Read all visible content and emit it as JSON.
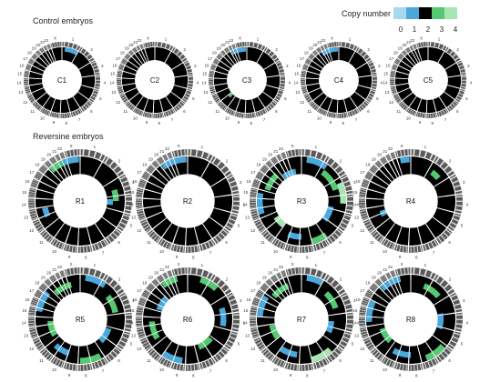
{
  "sections": [
    {
      "title": "Control embryos"
    },
    {
      "title": "Reversine embryos"
    }
  ],
  "legend": {
    "title": "Copy number",
    "entries": [
      {
        "label": "0",
        "color": "#a8d8f0"
      },
      {
        "label": "1",
        "color": "#4aa8dc"
      },
      {
        "label": "2",
        "color": "#000000"
      },
      {
        "label": "3",
        "color": "#55c873"
      },
      {
        "label": "4",
        "color": "#a6e6b2"
      }
    ]
  },
  "chromosome_labels": [
    "1",
    "2",
    "3",
    "4",
    "5",
    "6",
    "7",
    "8",
    "9",
    "10",
    "11",
    "12",
    "13",
    "14",
    "15",
    "16",
    "17",
    "18",
    "19",
    "20",
    "21",
    "22",
    "X"
  ],
  "embryos": [
    {
      "label": "C1",
      "group": "control",
      "events": [
        {
          "track": 0,
          "start": 0.015,
          "end": 0.085,
          "cn": 1
        }
      ]
    },
    {
      "label": "C2",
      "group": "control",
      "events": []
    },
    {
      "label": "C3",
      "group": "control",
      "events": [
        {
          "track": 0,
          "start": 0.92,
          "end": 0.995,
          "cn": 1
        },
        {
          "track": 2,
          "start": 0.62,
          "end": 0.64,
          "cn": 3
        }
      ]
    },
    {
      "label": "C4",
      "group": "control",
      "events": [
        {
          "track": 0,
          "start": 0.91,
          "end": 0.995,
          "cn": 1
        }
      ]
    },
    {
      "label": "C5",
      "group": "control",
      "events": []
    },
    {
      "label": "R1",
      "group": "reversine",
      "events": [
        {
          "track": 0,
          "start": 0.88,
          "end": 0.93,
          "cn": 3
        },
        {
          "track": 0,
          "start": 0.93,
          "end": 0.995,
          "cn": 1
        },
        {
          "track": 1,
          "start": 0.2,
          "end": 0.25,
          "cn": 3
        },
        {
          "track": 2,
          "start": 0.24,
          "end": 0.27,
          "cn": 1
        },
        {
          "track": 1,
          "start": 0.68,
          "end": 0.72,
          "cn": 1
        }
      ]
    },
    {
      "label": "R2",
      "group": "reversine",
      "events": [
        {
          "track": 0,
          "start": 0.9,
          "end": 0.995,
          "cn": 1
        }
      ]
    },
    {
      "label": "R3",
      "group": "reversine",
      "events": [
        {
          "track": 0,
          "start": 0.02,
          "end": 0.1,
          "cn": 1
        },
        {
          "track": 1,
          "start": 0.1,
          "end": 0.2,
          "cn": 3
        },
        {
          "track": 0,
          "start": 0.18,
          "end": 0.26,
          "cn": 4
        },
        {
          "track": 2,
          "start": 0.28,
          "end": 0.36,
          "cn": 1
        },
        {
          "track": 0,
          "start": 0.4,
          "end": 0.46,
          "cn": 3
        },
        {
          "track": 1,
          "start": 0.5,
          "end": 0.56,
          "cn": 1
        },
        {
          "track": 2,
          "start": 0.6,
          "end": 0.66,
          "cn": 4
        },
        {
          "track": 0,
          "start": 0.7,
          "end": 0.78,
          "cn": 1
        },
        {
          "track": 1,
          "start": 0.8,
          "end": 0.88,
          "cn": 3
        },
        {
          "track": 2,
          "start": 0.9,
          "end": 0.97,
          "cn": 1
        }
      ]
    },
    {
      "label": "R4",
      "group": "reversine",
      "events": [
        {
          "track": 0,
          "start": 0.96,
          "end": 0.995,
          "cn": 1
        },
        {
          "track": 1,
          "start": 0.1,
          "end": 0.14,
          "cn": 3
        },
        {
          "track": 2,
          "start": 0.67,
          "end": 0.7,
          "cn": 1
        }
      ]
    },
    {
      "label": "R5",
      "group": "reversine",
      "events": [
        {
          "track": 0,
          "start": 0.02,
          "end": 0.1,
          "cn": 1
        },
        {
          "track": 1,
          "start": 0.14,
          "end": 0.22,
          "cn": 3
        },
        {
          "track": 2,
          "start": 0.3,
          "end": 0.38,
          "cn": 1
        },
        {
          "track": 0,
          "start": 0.42,
          "end": 0.5,
          "cn": 3
        },
        {
          "track": 1,
          "start": 0.55,
          "end": 0.62,
          "cn": 1
        },
        {
          "track": 2,
          "start": 0.66,
          "end": 0.74,
          "cn": 3
        },
        {
          "track": 0,
          "start": 0.78,
          "end": 0.86,
          "cn": 1
        },
        {
          "track": 1,
          "start": 0.88,
          "end": 0.96,
          "cn": 3
        }
      ]
    },
    {
      "label": "R6",
      "group": "reversine",
      "events": [
        {
          "track": 0,
          "start": 0.05,
          "end": 0.12,
          "cn": 3
        },
        {
          "track": 1,
          "start": 0.2,
          "end": 0.28,
          "cn": 1
        },
        {
          "track": 2,
          "start": 0.36,
          "end": 0.44,
          "cn": 3
        },
        {
          "track": 0,
          "start": 0.52,
          "end": 0.6,
          "cn": 1
        },
        {
          "track": 1,
          "start": 0.66,
          "end": 0.74,
          "cn": 3
        },
        {
          "track": 2,
          "start": 0.8,
          "end": 0.88,
          "cn": 1
        },
        {
          "track": 0,
          "start": 0.9,
          "end": 0.96,
          "cn": 3
        }
      ]
    },
    {
      "label": "R7",
      "group": "reversine",
      "events": [
        {
          "track": 0,
          "start": 0.02,
          "end": 0.08,
          "cn": 1
        },
        {
          "track": 1,
          "start": 0.12,
          "end": 0.2,
          "cn": 3
        },
        {
          "track": 2,
          "start": 0.26,
          "end": 0.32,
          "cn": 1
        },
        {
          "track": 0,
          "start": 0.38,
          "end": 0.46,
          "cn": 4
        },
        {
          "track": 1,
          "start": 0.52,
          "end": 0.6,
          "cn": 1
        },
        {
          "track": 2,
          "start": 0.64,
          "end": 0.72,
          "cn": 3
        },
        {
          "track": 0,
          "start": 0.76,
          "end": 0.84,
          "cn": 1
        },
        {
          "track": 1,
          "start": 0.86,
          "end": 0.94,
          "cn": 3
        }
      ]
    },
    {
      "label": "R8",
      "group": "reversine",
      "events": [
        {
          "track": 0,
          "start": 0.88,
          "end": 0.96,
          "cn": 1
        },
        {
          "track": 1,
          "start": 0.06,
          "end": 0.14,
          "cn": 3
        },
        {
          "track": 2,
          "start": 0.22,
          "end": 0.3,
          "cn": 1
        },
        {
          "track": 0,
          "start": 0.36,
          "end": 0.44,
          "cn": 3
        },
        {
          "track": 1,
          "start": 0.5,
          "end": 0.58,
          "cn": 1
        },
        {
          "track": 2,
          "start": 0.62,
          "end": 0.7,
          "cn": 3
        },
        {
          "track": 0,
          "start": 0.74,
          "end": 0.82,
          "cn": 1
        }
      ]
    }
  ]
}
